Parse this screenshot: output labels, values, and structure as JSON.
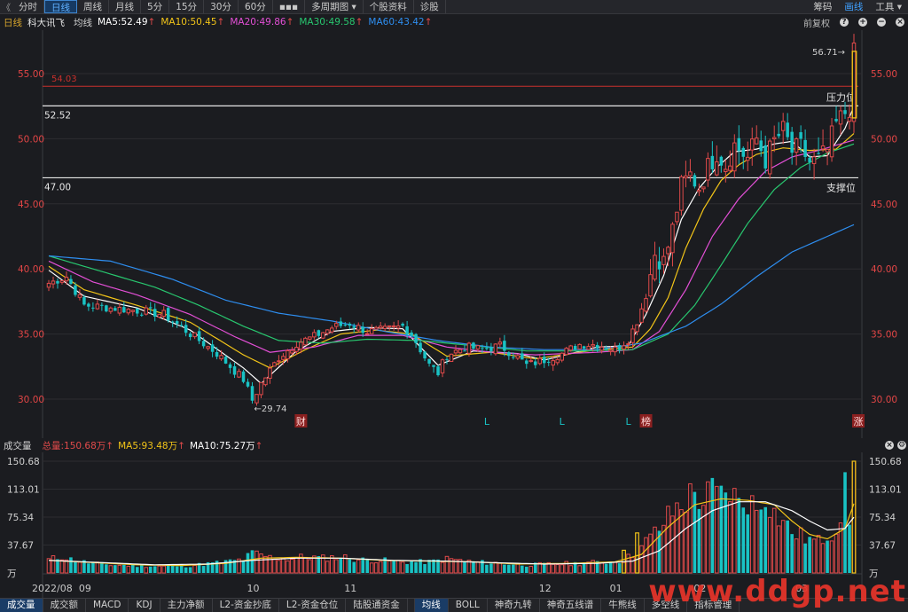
{
  "toolbar": {
    "tabs": [
      "分时",
      "日线",
      "周线",
      "月线",
      "5分",
      "15分",
      "30分",
      "60分",
      "▪▪▪",
      "多周期图 ▾",
      "个股资料",
      "诊股"
    ],
    "active": 1,
    "right": [
      "筹码",
      "画线",
      "工具 ▾"
    ]
  },
  "legend": {
    "period": "日线",
    "stock": "科大讯飞",
    "ma_label": "均线",
    "ma5": "MA5:52.49",
    "ma10": "MA10:50.45",
    "ma20": "MA20:49.86",
    "ma30": "MA30:49.58",
    "ma60": "MA60:43.42",
    "fq": "前复权"
  },
  "colors": {
    "up": "#e04a4a",
    "down": "#19c2c4",
    "ma5": "#ffffff",
    "ma10": "#f2c418",
    "ma20": "#e34fd6",
    "ma30": "#28c76f",
    "ma60": "#2e8ef0",
    "price_label": "#e34646",
    "vol_total": "#e04a4a"
  },
  "vol_legend": {
    "title": "成交量",
    "total": "总量:150.68万",
    "ma5": "MA5:93.48万",
    "ma10": "MA10:75.27万"
  },
  "bottom_tabs": [
    "成交量",
    "成交额",
    "MACD",
    "KDJ",
    "主力净额",
    "L2-资金抄底",
    "L2-资金仓位",
    "陆股通资金",
    "均线",
    "BOLL",
    "神奇九转",
    "神奇五线谱",
    "牛熊线",
    "多空线",
    "指标管理"
  ],
  "watermark": "www.ddgp.net",
  "chart_data": {
    "type": "candlestick",
    "price_axis": {
      "ticks": [
        "55.00",
        "50.00",
        "45.00",
        "40.00",
        "35.00",
        "30.00"
      ],
      "range": [
        27.9,
        58.4
      ]
    },
    "volume_axis": {
      "ticks": [
        "150.68",
        "113.01",
        "75.34",
        "37.67",
        "万"
      ],
      "range": [
        0,
        150.68
      ],
      "unit": "万"
    },
    "x_labels": [
      "2022/08",
      "09",
      "10",
      "11",
      "12",
      "01",
      "02",
      "03"
    ],
    "annotations": {
      "hline_red": "54.03",
      "line_resistance": "52.52",
      "resistance_label": "压力位",
      "line_support": "47.00",
      "support_label": "支撑位",
      "high": "56.71→",
      "low": "←29.74",
      "markers": [
        "财",
        "L",
        "L",
        "L",
        "榜",
        "涨"
      ]
    },
    "anchors": [
      [
        0,
        38.9
      ],
      [
        4,
        39.4
      ],
      [
        8,
        37.2
      ],
      [
        14,
        37.0
      ],
      [
        20,
        36.8
      ],
      [
        26,
        36.5
      ],
      [
        32,
        35.0
      ],
      [
        38,
        33.5
      ],
      [
        44,
        31.5
      ],
      [
        46,
        29.9
      ],
      [
        48,
        31.2
      ],
      [
        52,
        33.2
      ],
      [
        56,
        34.3
      ],
      [
        60,
        34.8
      ],
      [
        64,
        35.5
      ],
      [
        68,
        35.8
      ],
      [
        72,
        35.2
      ],
      [
        76,
        35.3
      ],
      [
        80,
        35.6
      ],
      [
        82,
        35.0
      ],
      [
        86,
        32.6
      ],
      [
        88,
        32.0
      ],
      [
        90,
        33.4
      ],
      [
        94,
        34.0
      ],
      [
        98,
        33.8
      ],
      [
        102,
        34.1
      ],
      [
        106,
        33.2
      ],
      [
        108,
        32.6
      ],
      [
        112,
        33.0
      ],
      [
        116,
        33.5
      ],
      [
        120,
        34.2
      ],
      [
        124,
        34.2
      ],
      [
        128,
        33.8
      ],
      [
        131,
        34.6
      ],
      [
        133,
        36.0
      ],
      [
        135,
        38.0
      ],
      [
        137,
        41.2
      ],
      [
        139,
        40.5
      ],
      [
        141,
        43.0
      ],
      [
        143,
        46.3
      ],
      [
        145,
        47.2
      ],
      [
        147,
        46.3
      ],
      [
        149,
        47.8
      ],
      [
        151,
        49.0
      ],
      [
        153,
        48.0
      ],
      [
        155,
        49.5
      ],
      [
        158,
        48.5
      ],
      [
        160,
        50.0
      ],
      [
        162,
        48.4
      ],
      [
        164,
        49.8
      ],
      [
        166,
        50.6
      ],
      [
        168,
        49.0
      ],
      [
        170,
        49.3
      ],
      [
        172,
        48.2
      ],
      [
        174,
        48.3
      ],
      [
        176,
        49.1
      ],
      [
        178,
        51.1
      ],
      [
        180,
        52.0
      ],
      [
        181,
        52.4
      ],
      [
        182,
        56.5
      ]
    ],
    "ma_lines": {
      "ma5": [
        [
          0,
          39.9
        ],
        [
          8,
          37.9
        ],
        [
          20,
          37.0
        ],
        [
          32,
          35.3
        ],
        [
          44,
          32.4
        ],
        [
          48,
          31.2
        ],
        [
          56,
          33.7
        ],
        [
          64,
          35.2
        ],
        [
          72,
          35.5
        ],
        [
          80,
          35.4
        ],
        [
          88,
          32.6
        ],
        [
          96,
          33.7
        ],
        [
          106,
          33.5
        ],
        [
          112,
          33.0
        ],
        [
          124,
          34.0
        ],
        [
          131,
          34.1
        ],
        [
          135,
          36.5
        ],
        [
          139,
          39.5
        ],
        [
          143,
          43.8
        ],
        [
          147,
          46.2
        ],
        [
          151,
          47.8
        ],
        [
          155,
          49.0
        ],
        [
          160,
          49.2
        ],
        [
          164,
          49.6
        ],
        [
          168,
          49.8
        ],
        [
          172,
          48.6
        ],
        [
          176,
          48.7
        ],
        [
          180,
          50.8
        ],
        [
          182,
          52.5
        ]
      ],
      "ma10": [
        [
          0,
          40.2
        ],
        [
          8,
          38.4
        ],
        [
          20,
          37.2
        ],
        [
          32,
          35.9
        ],
        [
          44,
          33.4
        ],
        [
          50,
          32.4
        ],
        [
          58,
          33.8
        ],
        [
          66,
          35.0
        ],
        [
          74,
          35.3
        ],
        [
          82,
          35.0
        ],
        [
          90,
          33.3
        ],
        [
          100,
          33.6
        ],
        [
          110,
          33.1
        ],
        [
          124,
          33.8
        ],
        [
          132,
          34.0
        ],
        [
          136,
          35.4
        ],
        [
          140,
          37.8
        ],
        [
          144,
          41.6
        ],
        [
          148,
          44.6
        ],
        [
          152,
          46.8
        ],
        [
          156,
          48.0
        ],
        [
          160,
          48.8
        ],
        [
          166,
          49.3
        ],
        [
          172,
          49.1
        ],
        [
          178,
          49.2
        ],
        [
          182,
          50.4
        ]
      ],
      "ma20": [
        [
          0,
          40.6
        ],
        [
          10,
          39.0
        ],
        [
          20,
          38.0
        ],
        [
          32,
          36.5
        ],
        [
          42,
          34.8
        ],
        [
          50,
          33.6
        ],
        [
          60,
          34.0
        ],
        [
          70,
          34.9
        ],
        [
          80,
          34.9
        ],
        [
          90,
          34.0
        ],
        [
          100,
          33.6
        ],
        [
          110,
          33.4
        ],
        [
          124,
          33.6
        ],
        [
          132,
          33.8
        ],
        [
          138,
          35.2
        ],
        [
          144,
          38.4
        ],
        [
          150,
          42.5
        ],
        [
          156,
          45.4
        ],
        [
          162,
          47.5
        ],
        [
          168,
          48.6
        ],
        [
          174,
          49.1
        ],
        [
          182,
          49.9
        ]
      ],
      "ma30": [
        [
          0,
          41.0
        ],
        [
          12,
          39.8
        ],
        [
          24,
          38.6
        ],
        [
          34,
          37.2
        ],
        [
          44,
          35.6
        ],
        [
          52,
          34.5
        ],
        [
          62,
          34.3
        ],
        [
          72,
          34.6
        ],
        [
          84,
          34.5
        ],
        [
          96,
          34.1
        ],
        [
          108,
          33.7
        ],
        [
          120,
          33.7
        ],
        [
          132,
          33.8
        ],
        [
          140,
          35.0
        ],
        [
          146,
          37.2
        ],
        [
          152,
          40.3
        ],
        [
          158,
          43.5
        ],
        [
          164,
          46.1
        ],
        [
          170,
          47.8
        ],
        [
          176,
          48.9
        ],
        [
          182,
          49.6
        ]
      ],
      "ma60": [
        [
          0,
          41.0
        ],
        [
          14,
          40.6
        ],
        [
          28,
          39.2
        ],
        [
          40,
          37.6
        ],
        [
          52,
          36.6
        ],
        [
          64,
          36.0
        ],
        [
          76,
          35.2
        ],
        [
          88,
          34.5
        ],
        [
          100,
          34.0
        ],
        [
          112,
          33.8
        ],
        [
          124,
          33.8
        ],
        [
          134,
          34.3
        ],
        [
          144,
          35.6
        ],
        [
          152,
          37.3
        ],
        [
          160,
          39.4
        ],
        [
          168,
          41.3
        ],
        [
          176,
          42.5
        ],
        [
          182,
          43.4
        ]
      ]
    },
    "volume_anchors": [
      [
        0,
        18
      ],
      [
        3,
        22
      ],
      [
        6,
        17
      ],
      [
        10,
        13
      ],
      [
        14,
        11
      ],
      [
        20,
        10
      ],
      [
        26,
        9
      ],
      [
        32,
        10
      ],
      [
        38,
        14
      ],
      [
        44,
        18
      ],
      [
        46,
        27
      ],
      [
        50,
        21
      ],
      [
        54,
        19
      ],
      [
        58,
        22
      ],
      [
        62,
        20
      ],
      [
        66,
        22
      ],
      [
        70,
        18
      ],
      [
        76,
        17
      ],
      [
        80,
        15
      ],
      [
        86,
        15
      ],
      [
        90,
        19
      ],
      [
        96,
        15
      ],
      [
        102,
        13
      ],
      [
        108,
        11
      ],
      [
        114,
        12
      ],
      [
        120,
        13
      ],
      [
        126,
        15
      ],
      [
        130,
        17
      ],
      [
        132,
        25
      ],
      [
        134,
        35
      ],
      [
        136,
        48
      ],
      [
        138,
        60
      ],
      [
        140,
        75
      ],
      [
        142,
        88
      ],
      [
        144,
        98
      ],
      [
        146,
        108
      ],
      [
        148,
        97
      ],
      [
        150,
        110
      ],
      [
        152,
        102
      ],
      [
        154,
        112
      ],
      [
        156,
        92
      ],
      [
        158,
        100
      ],
      [
        160,
        85
      ],
      [
        162,
        110
      ],
      [
        164,
        80
      ],
      [
        166,
        70
      ],
      [
        168,
        55
      ],
      [
        170,
        50
      ],
      [
        172,
        45
      ],
      [
        174,
        42
      ],
      [
        176,
        52
      ],
      [
        178,
        60
      ],
      [
        180,
        110
      ],
      [
        181,
        75
      ],
      [
        182,
        150.68
      ]
    ],
    "volume_ma": {
      "ma5": [
        [
          0,
          17
        ],
        [
          10,
          14
        ],
        [
          20,
          11
        ],
        [
          30,
          10
        ],
        [
          40,
          13
        ],
        [
          48,
          20
        ],
        [
          56,
          21
        ],
        [
          66,
          20
        ],
        [
          76,
          17
        ],
        [
          86,
          16
        ],
        [
          96,
          15
        ],
        [
          106,
          12
        ],
        [
          118,
          13
        ],
        [
          128,
          15
        ],
        [
          134,
          25
        ],
        [
          140,
          62
        ],
        [
          146,
          92
        ],
        [
          152,
          100
        ],
        [
          158,
          98
        ],
        [
          164,
          92
        ],
        [
          168,
          70
        ],
        [
          172,
          52
        ],
        [
          176,
          46
        ],
        [
          180,
          60
        ],
        [
          182,
          93.48
        ]
      ],
      "ma10": [
        [
          0,
          17
        ],
        [
          12,
          14
        ],
        [
          24,
          11
        ],
        [
          36,
          12
        ],
        [
          46,
          17
        ],
        [
          56,
          20
        ],
        [
          66,
          20
        ],
        [
          78,
          17
        ],
        [
          90,
          16
        ],
        [
          100,
          14
        ],
        [
          112,
          12
        ],
        [
          124,
          13
        ],
        [
          132,
          16
        ],
        [
          138,
          30
        ],
        [
          144,
          60
        ],
        [
          150,
          84
        ],
        [
          156,
          96
        ],
        [
          162,
          96
        ],
        [
          168,
          84
        ],
        [
          172,
          70
        ],
        [
          176,
          58
        ],
        [
          180,
          60
        ],
        [
          182,
          75.27
        ]
      ]
    }
  }
}
